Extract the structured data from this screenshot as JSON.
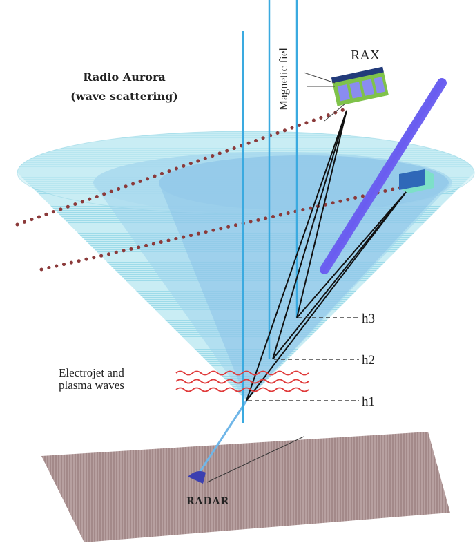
{
  "title": {
    "line1": "Radio Aurora",
    "line2": "(wave scattering)"
  },
  "labels": {
    "magnetic": "Magnetic fiel",
    "satellite": "RAX",
    "h3": "h3",
    "h2": "h2",
    "h1": "h1",
    "electrojet1": "Electrojet and",
    "electrojet2": "plasma waves",
    "radar": "RADAR"
  }
}
